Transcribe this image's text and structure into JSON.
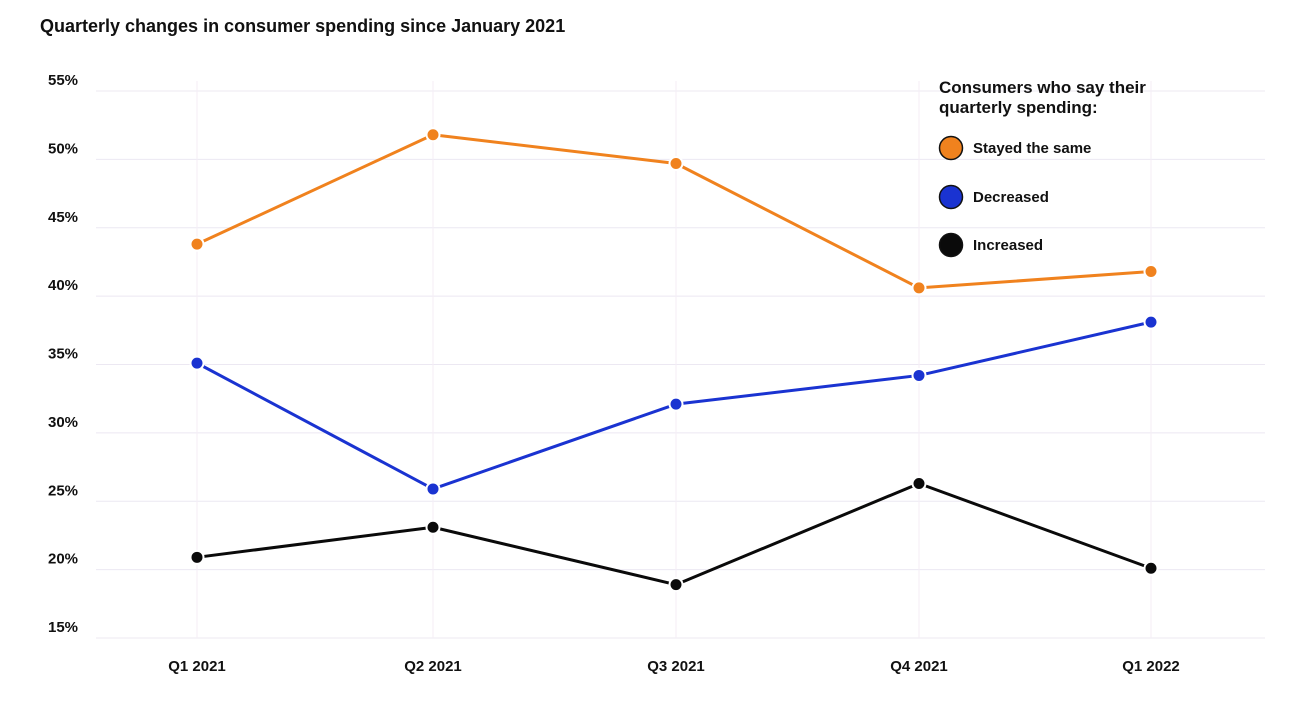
{
  "chart_data": {
    "type": "line",
    "title": "Quarterly changes in consumer spending since January 2021",
    "xlabel": "",
    "ylabel": "",
    "categories": [
      "Q1 2021",
      "Q2 2021",
      "Q3 2021",
      "Q4 2021",
      "Q1 2022"
    ],
    "ylim": [
      15,
      55
    ],
    "yticks": [
      15,
      20,
      25,
      30,
      35,
      40,
      45,
      50,
      55
    ],
    "ytick_labels": [
      "15%",
      "20%",
      "25%",
      "30%",
      "35%",
      "40%",
      "45%",
      "50%",
      "55%"
    ],
    "grid": true,
    "legend": {
      "title_lines": [
        "Consumers who say their",
        "quarterly spending:"
      ],
      "placement": "top-right"
    },
    "series": [
      {
        "name": "Stayed the same",
        "color": "#f0821e",
        "values": [
          43.8,
          51.8,
          49.7,
          40.6,
          41.8
        ]
      },
      {
        "name": "Decreased",
        "color": "#1a33d1",
        "values": [
          35.1,
          25.9,
          32.1,
          34.2,
          38.1
        ]
      },
      {
        "name": "Increased",
        "color": "#0a0a0a",
        "values": [
          20.9,
          23.1,
          18.9,
          26.3,
          20.1
        ]
      }
    ]
  }
}
